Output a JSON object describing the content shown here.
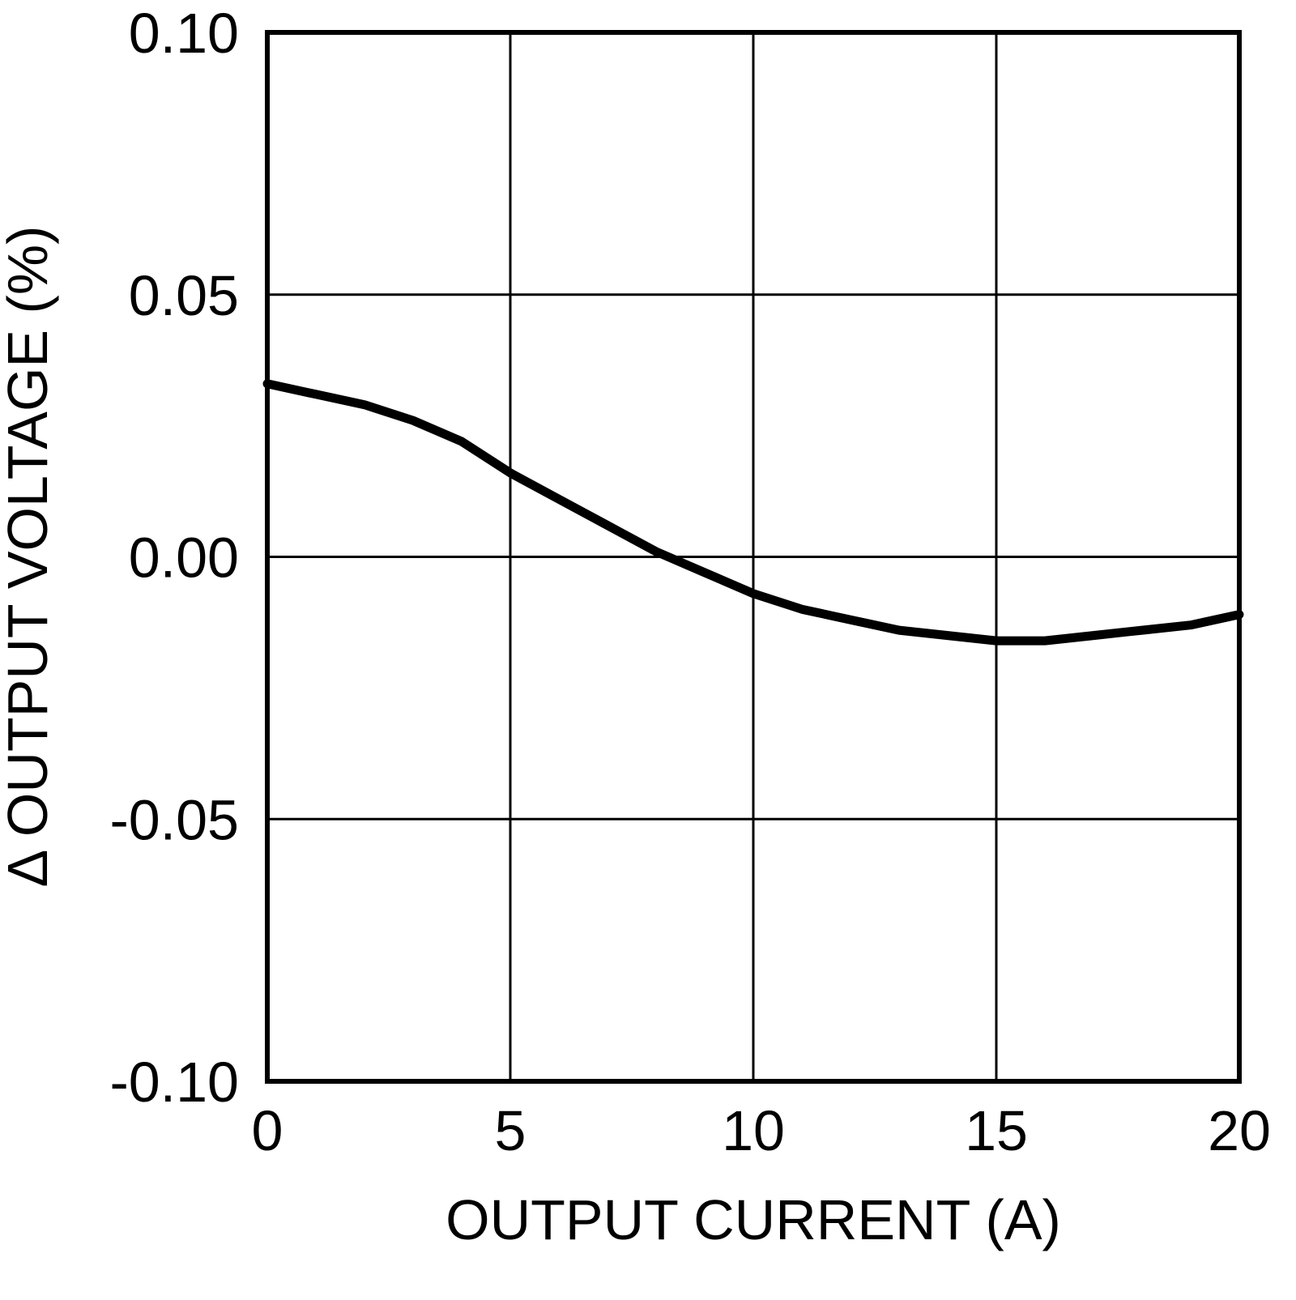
{
  "chart_data": {
    "type": "line",
    "title": "",
    "xlabel": "OUTPUT CURRENT (A)",
    "ylabel": "Δ OUTPUT VOLTAGE (%)",
    "xlim": [
      0,
      20
    ],
    "ylim": [
      -0.1,
      0.1
    ],
    "x_ticks": [
      0,
      5,
      10,
      15,
      20
    ],
    "x_tick_labels": [
      "0",
      "5",
      "10",
      "15",
      "20"
    ],
    "y_ticks": [
      -0.1,
      -0.05,
      0,
      0.05,
      0.1
    ],
    "y_tick_labels": [
      "-0.10",
      "-0.05",
      "0.00",
      "0.05",
      "0.10"
    ],
    "grid": true,
    "legend": "none",
    "colors": {
      "axis": "#000000",
      "line": "#000000",
      "background": "#ffffff"
    },
    "series": [
      {
        "name": "delta_output_voltage_vs_output_current",
        "x": [
          0,
          1,
          2,
          3,
          4,
          5,
          6,
          7,
          8,
          9,
          10,
          11,
          12,
          13,
          14,
          15,
          16,
          17,
          18,
          19,
          20
        ],
        "y": [
          0.033,
          0.031,
          0.029,
          0.026,
          0.022,
          0.016,
          0.011,
          0.006,
          0.001,
          -0.003,
          -0.007,
          -0.01,
          -0.012,
          -0.014,
          -0.015,
          -0.016,
          -0.016,
          -0.015,
          -0.014,
          -0.013,
          -0.011
        ]
      }
    ]
  }
}
